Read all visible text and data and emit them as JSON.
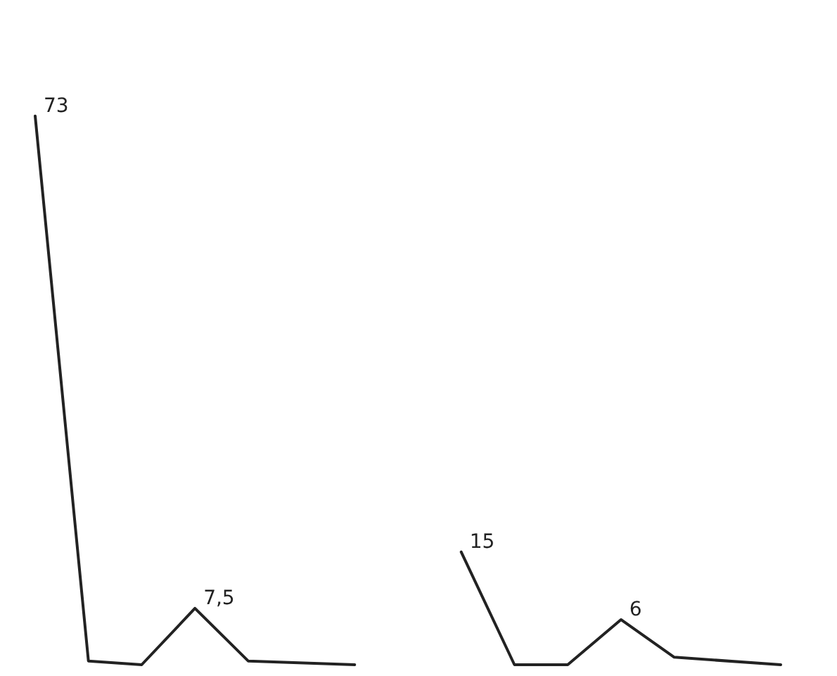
{
  "chart_data": {
    "type": "line",
    "categories": [
      null,
      null,
      null,
      null,
      null,
      null,
      null,
      null,
      null,
      null,
      null,
      null,
      null,
      null,
      null
    ],
    "series": [
      {
        "color": "#222222",
        "values": [
          73,
          0.5,
          0,
          7.5,
          0.5,
          null,
          0,
          null,
          null,
          null,
          null,
          null,
          null,
          null,
          null
        ],
        "value_labels": [
          "73",
          null,
          null,
          "7,5",
          null,
          null,
          null,
          null,
          null,
          null,
          null,
          null,
          null,
          null,
          null
        ]
      },
      {
        "color": "#222222",
        "values": [
          null,
          null,
          null,
          null,
          null,
          null,
          null,
          null,
          15,
          0,
          0,
          6,
          1,
          null,
          0
        ],
        "value_labels": [
          null,
          null,
          null,
          null,
          null,
          null,
          null,
          null,
          "15",
          null,
          null,
          "6",
          null,
          null,
          null
        ]
      }
    ],
    "marker": "none",
    "line_style": "solid",
    "grid": false,
    "tick_labels": false
  }
}
